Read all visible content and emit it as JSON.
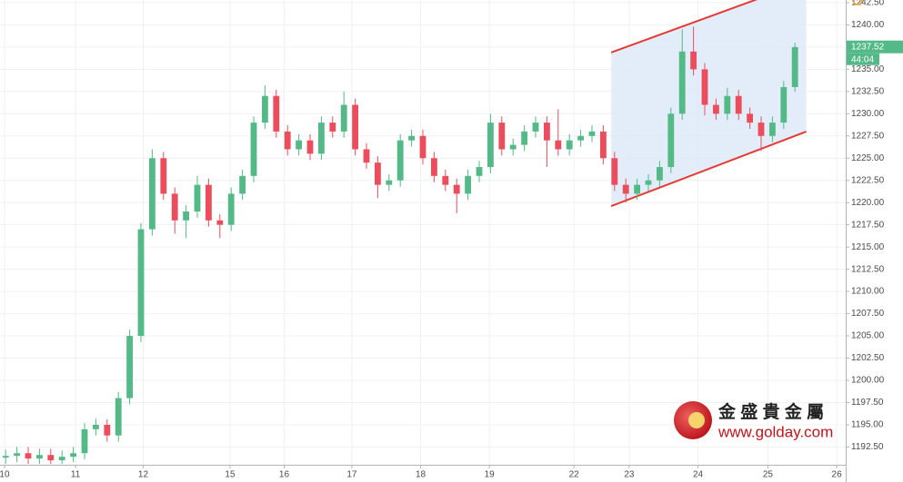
{
  "chart_data": {
    "type": "candlestick",
    "up_color": "#53b987",
    "down_color": "#eb4d5c",
    "x": [
      0,
      1,
      2,
      3,
      4,
      5,
      6,
      7,
      8,
      9,
      10,
      11,
      12,
      13,
      14,
      15,
      16,
      17,
      18,
      19,
      20,
      21,
      22,
      23,
      24,
      25,
      26,
      27,
      28,
      29,
      30,
      31,
      32,
      33,
      34,
      35,
      36,
      37,
      38,
      39,
      40,
      41,
      42,
      43,
      44,
      45,
      46,
      47,
      48,
      49,
      50,
      51,
      52,
      53,
      54,
      55,
      56,
      57,
      58,
      59,
      60,
      61,
      62,
      63,
      64,
      65,
      66,
      67,
      68,
      69,
      70
    ],
    "open": [
      1191.3,
      1191.5,
      1191.8,
      1191.2,
      1191.6,
      1191.0,
      1191.4,
      1191.8,
      1194.5,
      1195.0,
      1193.8,
      1198,
      1205,
      1217,
      1225,
      1221,
      1218,
      1219,
      1222,
      1218,
      1217.5,
      1221,
      1223,
      1229,
      1232,
      1228,
      1226,
      1227,
      1225.5,
      1229,
      1228,
      1231,
      1226,
      1224.5,
      1222,
      1222.5,
      1227,
      1227.5,
      1225,
      1223,
      1222,
      1221,
      1223,
      1224,
      1229,
      1226,
      1226.5,
      1228,
      1229,
      1227,
      1226,
      1227,
      1227.5,
      1228,
      1225,
      1222,
      1221,
      1222,
      1222.5,
      1224,
      1230,
      1237,
      1235,
      1231,
      1230,
      1232,
      1230,
      1229,
      1227.5,
      1229,
      1233
    ],
    "high": [
      1192.2,
      1192.5,
      1192.5,
      1192.3,
      1192.3,
      1192.1,
      1192.5,
      1195.2,
      1195.7,
      1195.6,
      1198.7,
      1205.7,
      1217.7,
      1226,
      1225.7,
      1221.7,
      1219.7,
      1223,
      1222.7,
      1218.7,
      1221.7,
      1223.7,
      1229.7,
      1233.2,
      1232.7,
      1228.7,
      1227.7,
      1227.7,
      1229.7,
      1229.7,
      1232.5,
      1231.7,
      1226.7,
      1225.2,
      1223.2,
      1227.7,
      1228.2,
      1228.2,
      1225.7,
      1223.7,
      1222.7,
      1223.7,
      1224.7,
      1230,
      1229.7,
      1227.2,
      1228.7,
      1229.7,
      1229.7,
      1230.5,
      1227.7,
      1228.2,
      1228.7,
      1228.7,
      1225.7,
      1222.7,
      1222.7,
      1223.2,
      1224.7,
      1230.7,
      1239.5,
      1239.8,
      1235.7,
      1231.7,
      1232.9,
      1232.7,
      1230.7,
      1229.7,
      1229.7,
      1233.7,
      1238
    ],
    "low": [
      1190.6,
      1190.8,
      1190.6,
      1190.6,
      1190.6,
      1190.6,
      1190.8,
      1191.1,
      1193.8,
      1193.1,
      1193.1,
      1197.3,
      1204.3,
      1216.3,
      1220.3,
      1216.5,
      1216,
      1218.3,
      1217.3,
      1216,
      1216.8,
      1220.3,
      1222.3,
      1228.3,
      1227.3,
      1225.3,
      1225.3,
      1224.8,
      1224.8,
      1227.3,
      1227.3,
      1225.3,
      1223.8,
      1220.5,
      1221.3,
      1221.8,
      1226.3,
      1224.3,
      1222.3,
      1221.3,
      1218.8,
      1220.3,
      1222.3,
      1223.3,
      1225.3,
      1225.3,
      1225.8,
      1227.3,
      1224,
      1225.3,
      1225.3,
      1226.3,
      1226.8,
      1224.3,
      1221.3,
      1220,
      1220.3,
      1221.3,
      1221.8,
      1223.3,
      1229.3,
      1234.3,
      1229.8,
      1229.3,
      1229.3,
      1229.3,
      1228.3,
      1225.8,
      1226.8,
      1228.3,
      1232.5
    ],
    "close": [
      1191.5,
      1191.8,
      1191.2,
      1191.6,
      1191.0,
      1191.4,
      1191.8,
      1194.5,
      1195.0,
      1193.8,
      1198,
      1205,
      1217,
      1225,
      1221,
      1218,
      1219,
      1222,
      1218,
      1217.5,
      1221,
      1223,
      1229,
      1232,
      1228,
      1226,
      1227,
      1225.5,
      1229,
      1228,
      1231,
      1226,
      1224.5,
      1222,
      1222.5,
      1227,
      1227.5,
      1225,
      1223,
      1222,
      1221,
      1223,
      1224,
      1229,
      1226,
      1226.5,
      1228,
      1229,
      1227,
      1226,
      1227,
      1227.5,
      1228,
      1225,
      1222,
      1221,
      1222,
      1222.5,
      1224,
      1230,
      1237,
      1235,
      1231,
      1230,
      1232,
      1230,
      1229,
      1227.5,
      1229,
      1233,
      1237.5
    ],
    "xlim": [
      -0.5,
      74.5
    ],
    "ylim": [
      1190.5,
      1242.8
    ],
    "xticks": [
      {
        "value": -0.1,
        "label": "10"
      },
      {
        "value": 6.2,
        "label": "11"
      },
      {
        "value": 12.2,
        "label": "12"
      },
      {
        "value": 19.9,
        "label": "15"
      },
      {
        "value": 24.7,
        "label": "16"
      },
      {
        "value": 30.7,
        "label": "17"
      },
      {
        "value": 36.8,
        "label": "18"
      },
      {
        "value": 42.9,
        "label": "19"
      },
      {
        "value": 50.4,
        "label": "22"
      },
      {
        "value": 55.3,
        "label": "23"
      },
      {
        "value": 61.4,
        "label": "24"
      },
      {
        "value": 67.6,
        "label": "25"
      },
      {
        "value": 73.7,
        "label": "26"
      }
    ],
    "yticks": [
      {
        "value": 1192.5,
        "label": "1192.50"
      },
      {
        "value": 1195,
        "label": "1195.00"
      },
      {
        "value": 1197.5,
        "label": "1197.50"
      },
      {
        "value": 1200,
        "label": "1200.00"
      },
      {
        "value": 1202.5,
        "label": "1202.50"
      },
      {
        "value": 1205,
        "label": "1205.00"
      },
      {
        "value": 1207.5,
        "label": "1207.50"
      },
      {
        "value": 1210,
        "label": "1210.00"
      },
      {
        "value": 1212.5,
        "label": "1212.50"
      },
      {
        "value": 1215,
        "label": "1215.00"
      },
      {
        "value": 1217.5,
        "label": "1217.50"
      },
      {
        "value": 1220,
        "label": "1220.00"
      },
      {
        "value": 1222.5,
        "label": "1222.50"
      },
      {
        "value": 1225,
        "label": "1225.00"
      },
      {
        "value": 1227.5,
        "label": "1227.50"
      },
      {
        "value": 1230,
        "label": "1230.00"
      },
      {
        "value": 1232.5,
        "label": "1232.50"
      },
      {
        "value": 1235,
        "label": "1235.00"
      },
      {
        "value": 1237.5,
        "label": "1237.50"
      },
      {
        "value": 1240,
        "label": "1240.00"
      },
      {
        "value": 1242.5,
        "label": "1242.50"
      }
    ],
    "grid": true,
    "channel": {
      "color": "#e53935",
      "fill": "#dce9f8",
      "upper": [
        [
          53.7,
          1236.9
        ],
        [
          71.0,
          1244.9
        ]
      ],
      "lower": [
        [
          53.7,
          1219.6
        ],
        [
          71.0,
          1228.0
        ]
      ]
    },
    "last_price": 1237.52,
    "countdown": "44:04",
    "watermark": {
      "title": "金 盛 貴 金 屬",
      "url": "www.golday.com"
    }
  }
}
